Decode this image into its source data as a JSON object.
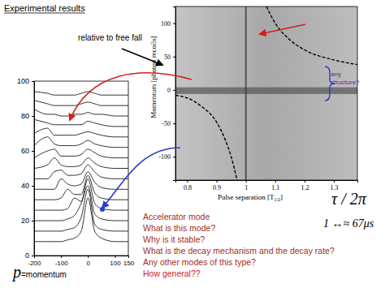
{
  "slide": {
    "title": "Experimental results",
    "arrow_note": "relative to free fall",
    "structure_note": [
      "any",
      "structure?"
    ],
    "tau": "τ / 2π",
    "scale_note": "1 ↔≈ 67μs",
    "p_label": [
      "p",
      "=momentum"
    ],
    "questions": [
      "Accelerator mode",
      "What is this mode?",
      "Why is it stable?",
      "What is the decay mechanism and the decay rate?",
      "Any other modes of this type?",
      "How general??"
    ]
  },
  "chart_data": [
    {
      "type": "line",
      "x": [
        -200,
        -150,
        -125,
        -100,
        -75,
        -50,
        -25,
        0,
        25,
        50,
        100,
        150
      ],
      "xlim": [
        -200,
        150
      ],
      "xticks": [
        -200,
        -100,
        0,
        100,
        150
      ],
      "ylim": [
        0,
        100
      ],
      "yticks": [
        0,
        20,
        40,
        60,
        80,
        100
      ],
      "series": [
        {
          "color": "#000000",
          "values": [
            8,
            8,
            8,
            8,
            9,
            10,
            14,
            33,
            14,
            10,
            8,
            8
          ]
        },
        {
          "color": "#000000",
          "values": [
            14,
            14,
            14,
            14,
            15,
            16,
            22,
            38,
            18,
            15,
            14,
            14
          ]
        },
        {
          "color": "#000000",
          "values": [
            20,
            20,
            20,
            20,
            21,
            23,
            30,
            40,
            24,
            21,
            20,
            20
          ]
        },
        {
          "color": "#000000",
          "values": [
            26,
            26,
            26,
            26,
            27,
            33,
            31,
            44,
            30,
            27,
            26,
            26
          ]
        },
        {
          "color": "#000000",
          "values": [
            32,
            32,
            32,
            33,
            38,
            35,
            35,
            46,
            36,
            33,
            32,
            32
          ]
        },
        {
          "color": "#000000",
          "values": [
            38,
            38,
            38,
            44,
            41,
            40,
            41,
            48,
            42,
            39,
            38,
            38
          ]
        },
        {
          "color": "#000000",
          "values": [
            44,
            44,
            48,
            49,
            46,
            46,
            47,
            52,
            48,
            45,
            44,
            44
          ]
        },
        {
          "color": "#000000",
          "values": [
            50,
            52,
            56,
            52,
            51,
            51,
            52,
            56,
            53,
            51,
            50,
            50
          ]
        },
        {
          "color": "#000000",
          "values": [
            56,
            60,
            61,
            57,
            57,
            57,
            58,
            61,
            59,
            57,
            56,
            56
          ]
        },
        {
          "color": "#000000",
          "values": [
            63,
            68,
            64,
            63,
            63,
            63,
            64,
            66,
            64,
            63,
            62,
            62
          ]
        },
        {
          "color": "#000000",
          "values": [
            70,
            73,
            69,
            69,
            69,
            69,
            70,
            71,
            70,
            69,
            68,
            68
          ]
        },
        {
          "color": "#000000",
          "values": [
            78,
            76,
            75,
            75,
            75,
            75,
            75,
            77,
            76,
            75,
            74,
            74
          ]
        },
        {
          "color": "#000000",
          "values": [
            84,
            81,
            81,
            80,
            80,
            81,
            81,
            82,
            81,
            81,
            80,
            80
          ]
        },
        {
          "color": "#000000",
          "values": [
            89,
            87,
            86,
            86,
            86,
            86,
            87,
            88,
            87,
            86,
            86,
            86
          ]
        },
        {
          "color": "#000000",
          "values": [
            94,
            93,
            92,
            92,
            92,
            92,
            93,
            94,
            93,
            92,
            92,
            92
          ]
        }
      ]
    },
    {
      "type": "line",
      "x_label": [
        "Pulse separation [T",
        "1/2",
        "]"
      ],
      "y_label": "Momentum [photon recoils]",
      "xlim": [
        0.76,
        1.38
      ],
      "xticks": [
        0.8,
        0.9,
        1,
        1.1,
        1.2,
        1.3
      ],
      "ylim": [
        -135,
        125
      ],
      "yticks": [
        -100,
        -50,
        0,
        50,
        100
      ],
      "zero_band": [
        -6,
        4
      ],
      "resonance_x": 1,
      "series": [
        {
          "color": "#000000",
          "line_style": "dashed",
          "x": [
            0.76,
            0.8,
            0.85,
            0.9,
            0.93,
            0.95,
            0.97
          ],
          "values": [
            -8,
            -12,
            -25,
            -48,
            -75,
            -100,
            -135
          ]
        },
        {
          "color": "#000000",
          "line_style": "dashed",
          "x": [
            1.07,
            1.1,
            1.15,
            1.2,
            1.3,
            1.38
          ],
          "values": [
            125,
            100,
            75,
            60,
            45,
            38
          ]
        }
      ]
    }
  ]
}
